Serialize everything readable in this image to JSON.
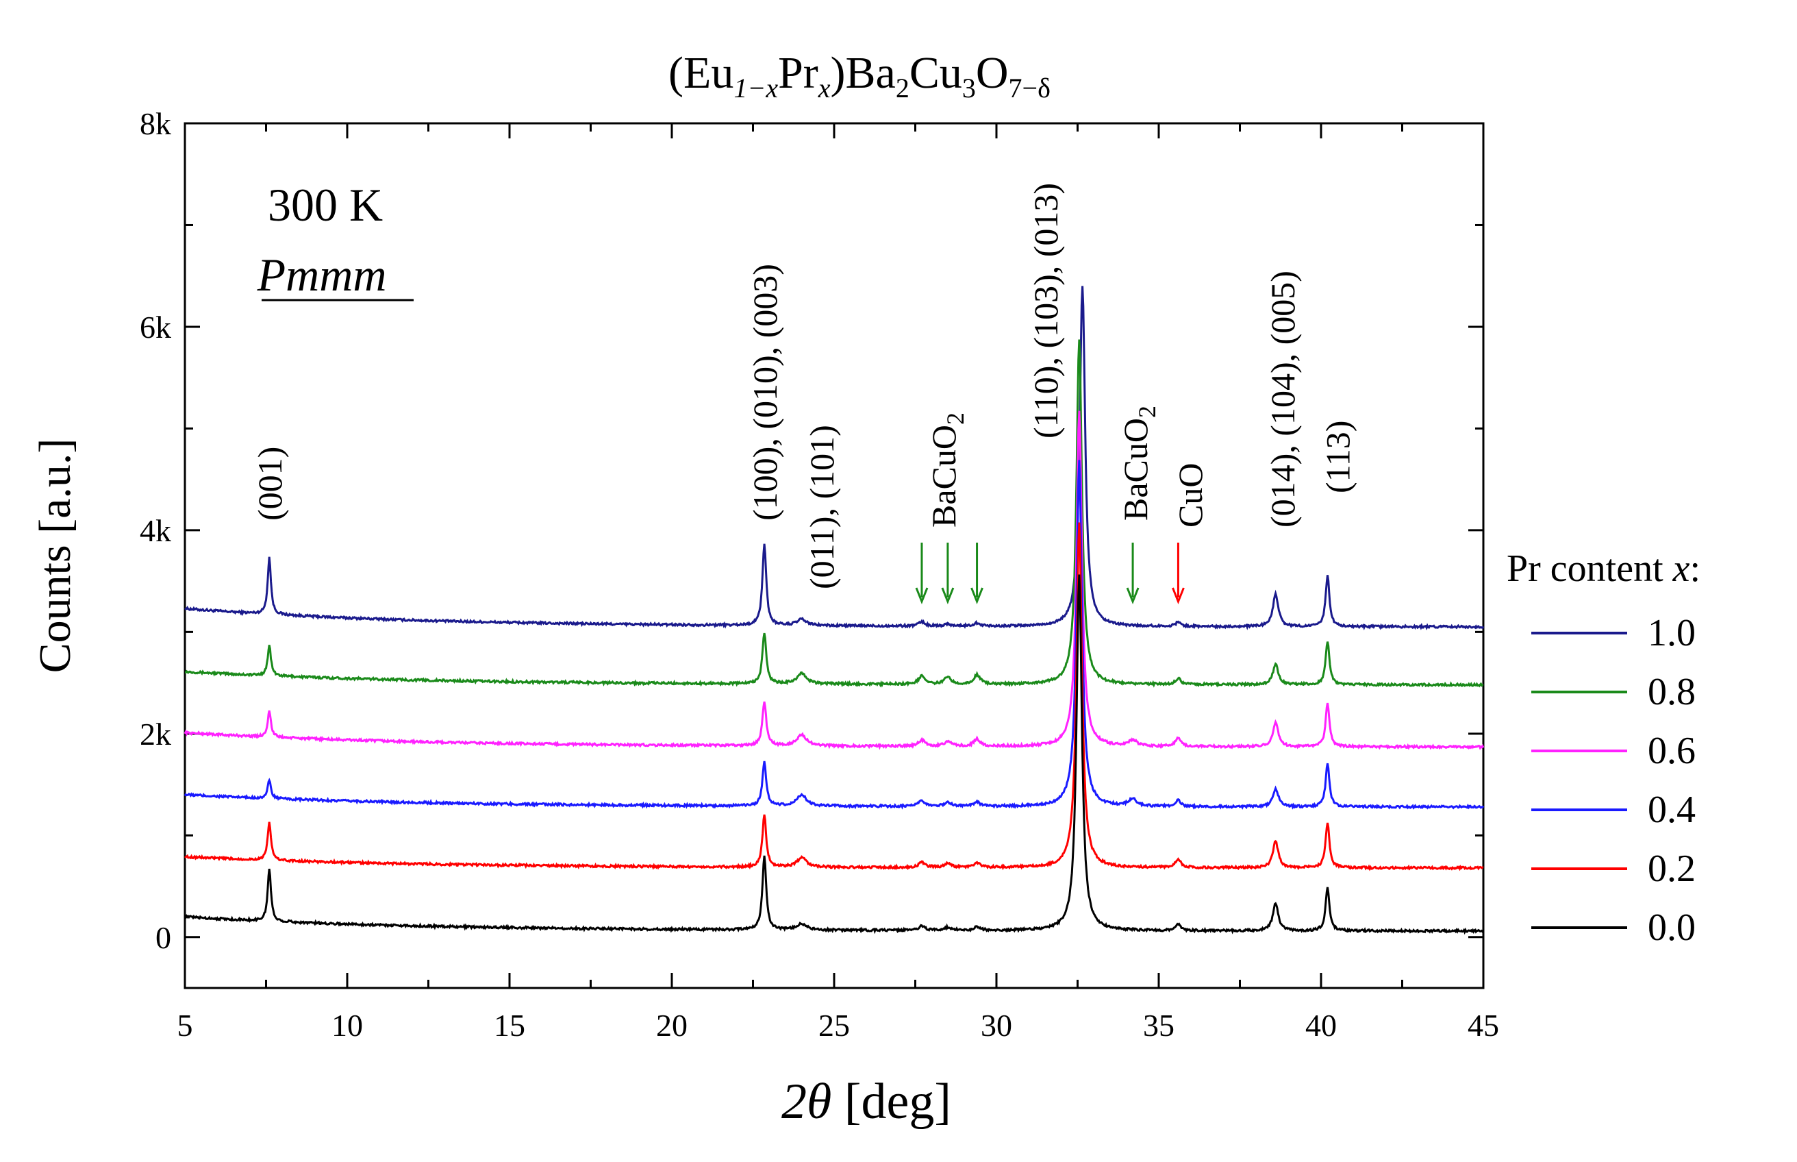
{
  "chart_data": {
    "type": "line",
    "title": {
      "open": "(Eu",
      "sub_1mx": "1−x",
      "pr": "Pr",
      "sub_x": "x",
      "close": ")Ba",
      "sub_2": "2",
      "cu": "Cu",
      "sub_3": "3",
      "o": "O",
      "sub_o": "7−δ"
    },
    "xlabel": {
      "theta": "2θ",
      "unit": " [deg]"
    },
    "ylabel": "Counts [a.u.]",
    "xlim": [
      5,
      45
    ],
    "ylim": [
      -500,
      8000
    ],
    "x_ticks": [
      5,
      10,
      15,
      20,
      25,
      30,
      35,
      40,
      45
    ],
    "y_ticks": [
      {
        "value": 0,
        "label": "0"
      },
      {
        "value": 2000,
        "label": "2k"
      },
      {
        "value": 4000,
        "label": "4k"
      },
      {
        "value": 6000,
        "label": "6k"
      },
      {
        "value": 8000,
        "label": "8k"
      }
    ],
    "annotations": {
      "temperature": "300 K",
      "space_group": "Pmmm"
    },
    "peak_labels": [
      {
        "text": "(001)",
        "x": 7.6
      },
      {
        "text": "(100), (010), (003)",
        "x": 22.85
      },
      {
        "text": "(011), (101)",
        "x": 24.6
      },
      {
        "text": "(110), (103), (013)",
        "x": 31.5
      },
      {
        "text": "(014), (104), (005)",
        "x": 38.8
      },
      {
        "text": "(113)",
        "x": 40.5
      }
    ],
    "impurity_phases": [
      {
        "text": "BaCuO",
        "sub": "2",
        "color": "#1a8a1a",
        "arrows_x": [
          27.7,
          28.5,
          29.4
        ]
      },
      {
        "text": "BaCuO",
        "sub": "2",
        "color": "#1a8a1a",
        "arrows_x": [
          34.2
        ]
      },
      {
        "text": "CuO",
        "sub": "",
        "color": "#ff0000",
        "arrows_x": [
          35.6
        ]
      }
    ],
    "legend_title": {
      "text": "Pr content ",
      "var": "x",
      "colon": ":"
    },
    "peaks": [
      {
        "x": 7.6,
        "w": 0.06
      },
      {
        "x": 22.85,
        "w": 0.07
      },
      {
        "x": 24.0,
        "w": 0.18
      },
      {
        "x": 27.7,
        "w": 0.12
      },
      {
        "x": 28.5,
        "w": 0.12
      },
      {
        "x": 29.4,
        "w": 0.12
      },
      {
        "x": 32.55,
        "w": 0.1
      },
      {
        "x": 34.2,
        "w": 0.15
      },
      {
        "x": 35.6,
        "w": 0.1
      },
      {
        "x": 38.6,
        "w": 0.1
      },
      {
        "x": 40.2,
        "w": 0.07
      }
    ],
    "series": [
      {
        "name": "1.0",
        "color": "#1a1a8c",
        "offset": 3050,
        "bg_amp": 180,
        "x_shift": 0.1,
        "amps": [
          560,
          800,
          60,
          40,
          20,
          30,
          3350,
          0,
          40,
          320,
          500
        ]
      },
      {
        "name": "0.8",
        "color": "#1a8a1a",
        "offset": 2480,
        "bg_amp": 130,
        "x_shift": 0.0,
        "amps": [
          300,
          500,
          100,
          80,
          70,
          90,
          3400,
          0,
          60,
          200,
          430
        ]
      },
      {
        "name": "0.6",
        "color": "#ff22ff",
        "offset": 1870,
        "bg_amp": 140,
        "x_shift": 0.0,
        "amps": [
          260,
          440,
          110,
          60,
          50,
          70,
          3300,
          60,
          90,
          240,
          430
        ]
      },
      {
        "name": "0.4",
        "color": "#1a1aff",
        "offset": 1280,
        "bg_amp": 120,
        "x_shift": 0.0,
        "amps": [
          180,
          430,
          110,
          50,
          40,
          40,
          3400,
          70,
          60,
          180,
          420
        ]
      },
      {
        "name": "0.2",
        "color": "#ff0000",
        "offset": 680,
        "bg_amp": 110,
        "x_shift": 0.0,
        "amps": [
          380,
          510,
          90,
          50,
          40,
          40,
          3400,
          0,
          80,
          260,
          450
        ]
      },
      {
        "name": "0.0",
        "color": "#000000",
        "offset": 60,
        "bg_amp": 140,
        "x_shift": 0.0,
        "amps": [
          520,
          730,
          60,
          40,
          30,
          30,
          3500,
          0,
          60,
          270,
          430
        ]
      }
    ]
  }
}
